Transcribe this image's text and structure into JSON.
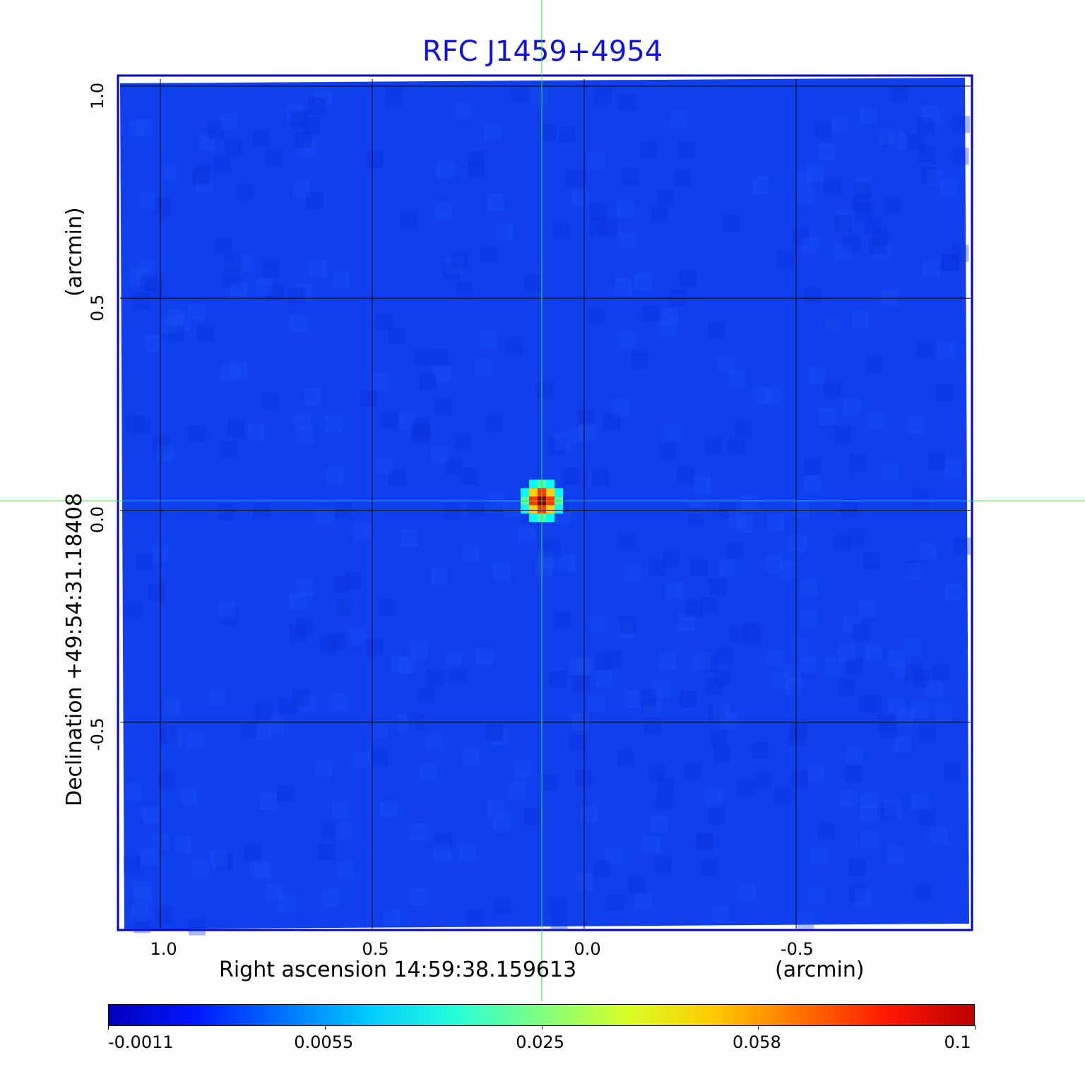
{
  "chart_data": {
    "type": "heatmap",
    "title": "RFC J1459+4954",
    "xlabel": "Right ascension  14:59:38.159613",
    "xunit": "(arcmin)",
    "ylabel": "Declination  +49:54:31.18408",
    "yunit": "(arcmin)",
    "xlim": [
      1.1,
      -0.915
    ],
    "ylim": [
      -0.99,
      1.025
    ],
    "xticks": [
      "1.0",
      "0.5",
      "0.0",
      "-0.5"
    ],
    "xtick_values": [
      1.0,
      0.5,
      0.0,
      -0.5
    ],
    "yticks": [
      "1.0",
      "0.5",
      "0.0",
      "-0.5"
    ],
    "ytick_values": [
      1.0,
      0.5,
      0.0,
      -0.5
    ],
    "grid": true,
    "crosshair": {
      "x": 0.1,
      "y": 0.022,
      "color": "#33dd33"
    },
    "source": {
      "x": 0.1,
      "y": 0.022,
      "peak": 0.1
    },
    "background_level": 0.0,
    "colormap": "jet",
    "colorbar": {
      "ticks": [
        "-0.0011",
        "0.0055",
        "0.025",
        "0.058",
        "0.1"
      ],
      "range": [
        -0.0011,
        0.1
      ],
      "placement": "bottom"
    },
    "colors": {
      "title": "#1010e0",
      "frame": "#0000d0",
      "background": "#1040ee"
    }
  }
}
